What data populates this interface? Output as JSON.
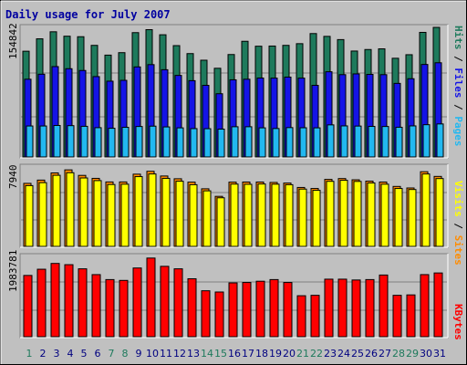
{
  "chart_data": {
    "title": "Daily usage for July 2007",
    "type": "bar",
    "days": [
      "1",
      "2",
      "3",
      "4",
      "5",
      "6",
      "7",
      "8",
      "9",
      "10",
      "11",
      "12",
      "13",
      "14",
      "15",
      "16",
      "17",
      "18",
      "19",
      "20",
      "21",
      "22",
      "23",
      "24",
      "25",
      "26",
      "27",
      "28",
      "29",
      "30",
      "31"
    ],
    "weekend_days": [
      1,
      7,
      8,
      14,
      15,
      21,
      22,
      28,
      29
    ],
    "ymax_labels": {
      "pages_files_hits": "154842",
      "sites_visits": "7940",
      "kbytes": "1983781"
    },
    "right_labels": {
      "pages": "Pages",
      "files": "Files",
      "hits": "Hits",
      "sep": " / ",
      "sites": "Sites",
      "visits": "Visits",
      "kbytes": "KBytes"
    },
    "colors": {
      "hits": "#1e7a5c",
      "files": "#1414e6",
      "pages": "#22b8f0",
      "sites": "#ff8c00",
      "visits": "#ffff00",
      "kbytes": "#ff0000",
      "title": "#0000a0",
      "weekday": "#000080",
      "weekend": "#1e7a5c"
    },
    "series": [
      {
        "name": "Hits",
        "max": 154842,
        "values": [
          124600,
          139200,
          147500,
          142300,
          141700,
          131500,
          120000,
          122900,
          146500,
          150000,
          144000,
          131200,
          121800,
          114000,
          104500,
          120700,
          136300,
          130500,
          130700,
          131500,
          133500,
          145400,
          142100,
          138300,
          124800,
          126600,
          127400,
          116300,
          120500,
          146800,
          152700
        ]
      },
      {
        "name": "Files",
        "max": 154842,
        "values": [
          91600,
          97500,
          106500,
          104000,
          101900,
          94700,
          89300,
          90300,
          106100,
          108800,
          102800,
          96100,
          89900,
          84400,
          74500,
          90900,
          91600,
          93000,
          92900,
          94100,
          92900,
          84400,
          100400,
          97000,
          97900,
          97300,
          97000,
          86700,
          92200,
          109000,
          111000
        ]
      },
      {
        "name": "Pages",
        "max": 154842,
        "values": [
          36500,
          36500,
          37100,
          36900,
          36100,
          34500,
          33800,
          34900,
          35900,
          36300,
          35400,
          34300,
          33400,
          33300,
          32800,
          35600,
          35600,
          34300,
          33500,
          34600,
          34400,
          34300,
          37800,
          36600,
          36400,
          36000,
          35900,
          35000,
          36600,
          38000,
          38900
        ]
      },
      {
        "name": "Sites",
        "max": 7940,
        "values": [
          6160,
          6480,
          7180,
          7480,
          6940,
          6650,
          6300,
          6300,
          7060,
          7340,
          6880,
          6610,
          6280,
          5630,
          4890,
          6280,
          6290,
          6290,
          6250,
          6190,
          5760,
          5660,
          6550,
          6630,
          6510,
          6380,
          6290,
          5860,
          5710,
          7300,
          6840
        ]
      },
      {
        "name": "Visits",
        "max": 7940,
        "values": [
          5940,
          6230,
          6950,
          7200,
          6690,
          6430,
          6050,
          6080,
          6820,
          7080,
          6650,
          6370,
          6030,
          5430,
          4750,
          6090,
          6070,
          6100,
          6080,
          6030,
          5600,
          5480,
          6360,
          6460,
          6350,
          6200,
          6080,
          5660,
          5560,
          7080,
          6630
        ]
      },
      {
        "name": "KBytes",
        "max": 1983781,
        "values": [
          1480000,
          1630000,
          1770000,
          1740000,
          1640000,
          1500000,
          1380000,
          1360000,
          1660000,
          1900000,
          1700000,
          1640000,
          1400000,
          1110000,
          1080000,
          1300000,
          1310000,
          1340000,
          1380000,
          1310000,
          990000,
          1000000,
          1390000,
          1390000,
          1370000,
          1380000,
          1490000,
          1000000,
          1010000,
          1500000,
          1540000
        ]
      }
    ]
  }
}
